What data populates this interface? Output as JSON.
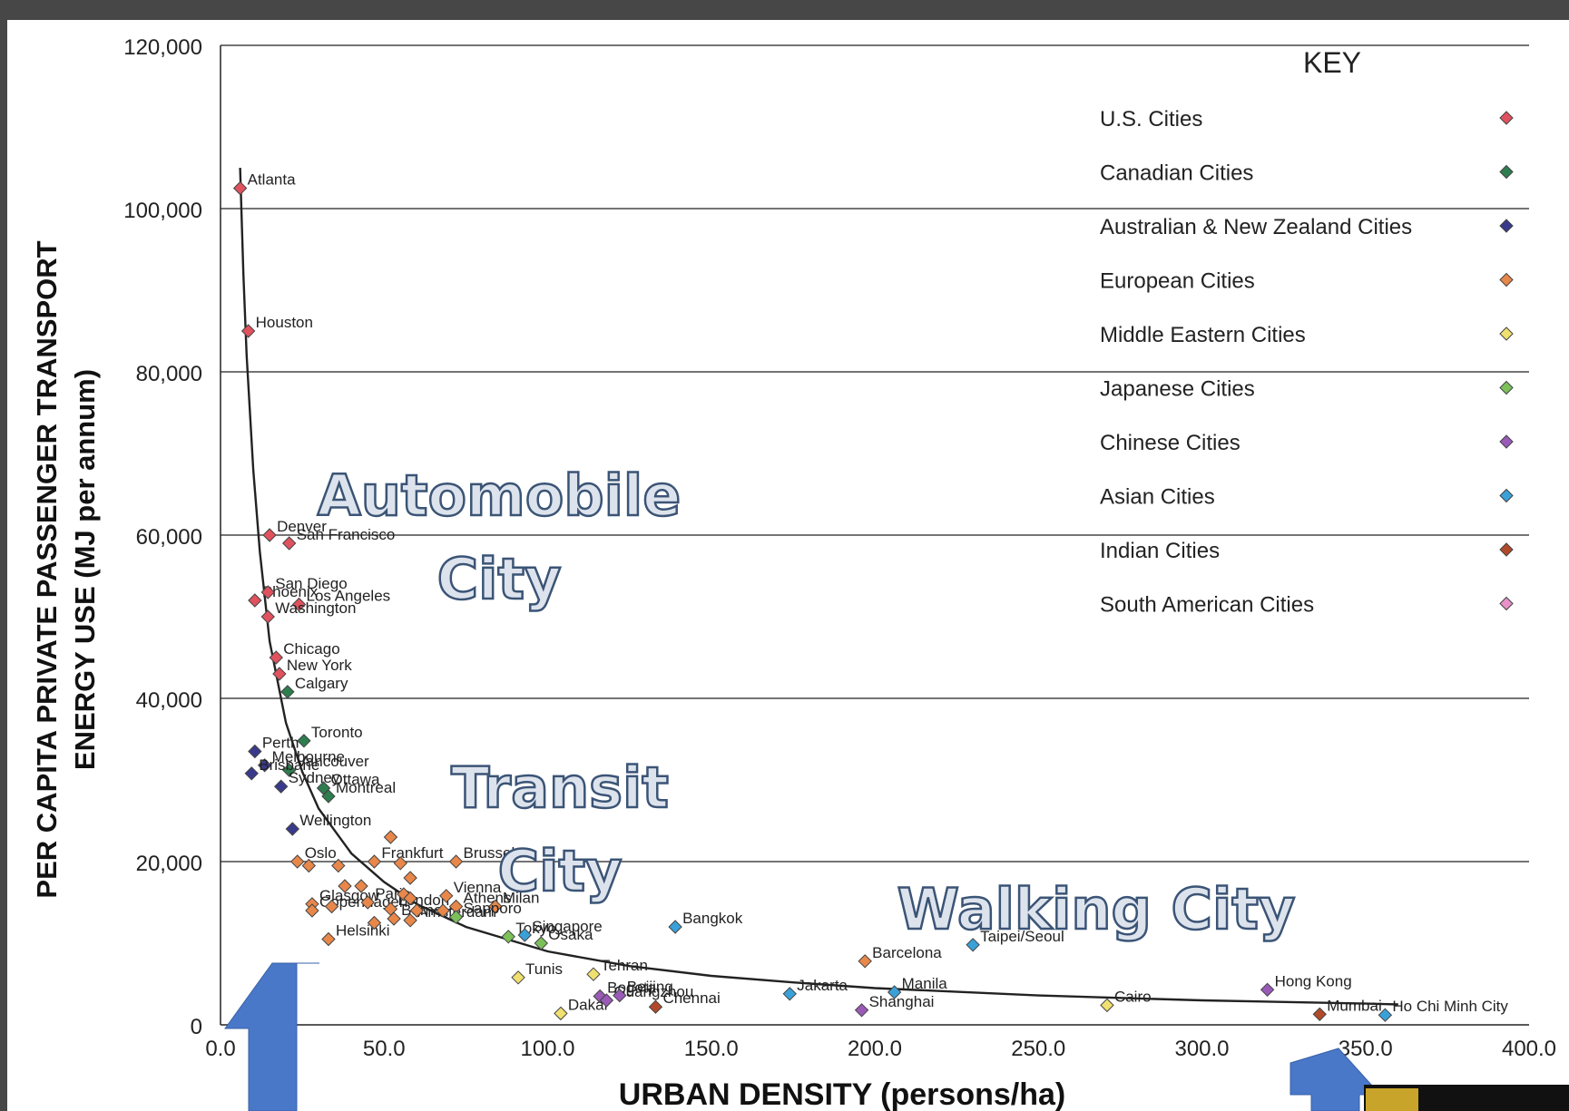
{
  "chart_data": {
    "type": "scatter",
    "xlabel": "URBAN DENSITY (persons/ha)",
    "ylabel_line1": "PER CAPITA PRIVATE PASSENGER TRANSPORT",
    "ylabel_line2": "ENERGY USE (MJ per annum)",
    "xlim": [
      0,
      400
    ],
    "ylim": [
      0,
      120000
    ],
    "x_ticks": [
      "0.0",
      "50.0",
      "100.0",
      "150.0",
      "200.0",
      "250.0",
      "300.0",
      "350.0",
      "400.0"
    ],
    "y_ticks": [
      "0",
      "20,000",
      "40,000",
      "60,000",
      "80,000",
      "100,000",
      "120,000"
    ],
    "grid": "horizontal",
    "legend": {
      "title": "KEY",
      "placement": "top-right",
      "entries": [
        {
          "label": "U.S. Cities",
          "color": "#e0525e"
        },
        {
          "label": "Canadian Cities",
          "color": "#2e7d4f"
        },
        {
          "label": "Australian & New Zealand Cities",
          "color": "#3a3a8c"
        },
        {
          "label": "European Cities",
          "color": "#e8874a"
        },
        {
          "label": "Middle Eastern Cities",
          "color": "#f0e070"
        },
        {
          "label": "Japanese Cities",
          "color": "#7cc05a"
        },
        {
          "label": "Chinese Cities",
          "color": "#9a5ab8"
        },
        {
          "label": "Asian Cities",
          "color": "#3aa0d8"
        },
        {
          "label": "Indian Cities",
          "color": "#b04a2a"
        },
        {
          "label": "South American Cities",
          "color": "#e890c8"
        }
      ]
    },
    "series": [
      {
        "name": "U.S. Cities",
        "color": "#e0525e",
        "points": [
          {
            "label": "Atlanta",
            "x": 6,
            "y": 102500
          },
          {
            "label": "Houston",
            "x": 8.5,
            "y": 85000
          },
          {
            "label": "Denver",
            "x": 15,
            "y": 60000
          },
          {
            "label": "San Francisco",
            "x": 21,
            "y": 59000
          },
          {
            "label": "Phoenix",
            "x": 10.5,
            "y": 52000
          },
          {
            "label": "San Diego",
            "x": 14.5,
            "y": 53000
          },
          {
            "label": "Los Angeles",
            "x": 24,
            "y": 51500
          },
          {
            "label": "Washington",
            "x": 14.5,
            "y": 50000
          },
          {
            "label": "Chicago",
            "x": 17,
            "y": 45000
          },
          {
            "label": "New York",
            "x": 18,
            "y": 43000
          }
        ]
      },
      {
        "name": "Canadian Cities",
        "color": "#2e7d4f",
        "points": [
          {
            "label": "Calgary",
            "x": 20.5,
            "y": 40800
          },
          {
            "label": "Toronto",
            "x": 25.5,
            "y": 34800
          },
          {
            "label": "Vancouver",
            "x": 21,
            "y": 31200
          },
          {
            "label": "Ottawa",
            "x": 31.5,
            "y": 29000
          },
          {
            "label": "Montreal",
            "x": 33,
            "y": 28000
          }
        ]
      },
      {
        "name": "Australian & New Zealand Cities",
        "color": "#3a3a8c",
        "points": [
          {
            "label": "Perth",
            "x": 10.5,
            "y": 33500
          },
          {
            "label": "Melbourne",
            "x": 13.5,
            "y": 31800
          },
          {
            "label": "Brisbane",
            "x": 9.5,
            "y": 30800
          },
          {
            "label": "Sydney",
            "x": 18.5,
            "y": 29200
          },
          {
            "label": "Wellington",
            "x": 22,
            "y": 24000
          }
        ]
      },
      {
        "name": "European Cities",
        "color": "#e8874a",
        "points": [
          {
            "label": "Oslo",
            "x": 23.5,
            "y": 20000
          },
          {
            "label": "Frankfurt",
            "x": 47,
            "y": 20000
          },
          {
            "label": "Brussels",
            "x": 72,
            "y": 20000
          },
          {
            "label": "Glasgow",
            "x": 28,
            "y": 14800
          },
          {
            "label": "Copenhagen",
            "x": 28,
            "y": 14000
          },
          {
            "label": "Paris",
            "x": 45,
            "y": 15000
          },
          {
            "label": "London",
            "x": 52,
            "y": 14200
          },
          {
            "label": "Berne",
            "x": 53,
            "y": 13000
          },
          {
            "label": "Amsterdam",
            "x": 58,
            "y": 12800
          },
          {
            "label": "Vienna",
            "x": 69,
            "y": 15800
          },
          {
            "label": "Athens",
            "x": 72,
            "y": 14500
          },
          {
            "label": "Milan",
            "x": 84,
            "y": 14500
          },
          {
            "label": "Helsinki",
            "x": 33,
            "y": 10500
          },
          {
            "label": "Barcelona",
            "x": 197,
            "y": 7800
          },
          {
            "label": "",
            "x": 52,
            "y": 23000
          },
          {
            "label": "",
            "x": 27,
            "y": 19500
          },
          {
            "label": "",
            "x": 36,
            "y": 19500
          },
          {
            "label": "",
            "x": 55,
            "y": 19800
          },
          {
            "label": "",
            "x": 58,
            "y": 18000
          },
          {
            "label": "",
            "x": 38,
            "y": 17000
          },
          {
            "label": "",
            "x": 43,
            "y": 17000
          },
          {
            "label": "",
            "x": 56,
            "y": 16000
          },
          {
            "label": "",
            "x": 58,
            "y": 15500
          },
          {
            "label": "",
            "x": 34,
            "y": 14500
          },
          {
            "label": "",
            "x": 60,
            "y": 14000
          },
          {
            "label": "",
            "x": 68,
            "y": 14000
          },
          {
            "label": "",
            "x": 47,
            "y": 12500
          }
        ]
      },
      {
        "name": "Middle Eastern Cities",
        "color": "#f0e070",
        "points": [
          {
            "label": "Tunis",
            "x": 91,
            "y": 5800
          },
          {
            "label": "Tehran",
            "x": 114,
            "y": 6200
          },
          {
            "label": "Dakar",
            "x": 104,
            "y": 1400
          },
          {
            "label": "Cairo",
            "x": 271,
            "y": 2400
          }
        ]
      },
      {
        "name": "Japanese Cities",
        "color": "#7cc05a",
        "points": [
          {
            "label": "Sapporo",
            "x": 72,
            "y": 13200
          },
          {
            "label": "Tokyo",
            "x": 88,
            "y": 10800
          },
          {
            "label": "Osaka",
            "x": 98,
            "y": 10000
          }
        ]
      },
      {
        "name": "Chinese Cities",
        "color": "#9a5ab8",
        "points": [
          {
            "label": "Bogota",
            "x": 116,
            "y": 3500
          },
          {
            "label": "Guangzhou",
            "x": 118,
            "y": 3000
          },
          {
            "label": "Beijing",
            "x": 122,
            "y": 3600
          },
          {
            "label": "Shanghai",
            "x": 196,
            "y": 1800
          },
          {
            "label": "Hong Kong",
            "x": 320,
            "y": 4300
          }
        ]
      },
      {
        "name": "Asian Cities",
        "color": "#3aa0d8",
        "points": [
          {
            "label": "Singapore",
            "x": 93,
            "y": 11000
          },
          {
            "label": "Bangkok",
            "x": 139,
            "y": 12000
          },
          {
            "label": "Jakarta",
            "x": 174,
            "y": 3800
          },
          {
            "label": "Manila",
            "x": 206,
            "y": 4000
          },
          {
            "label": "Taipei/Seoul",
            "x": 230,
            "y": 9800
          },
          {
            "label": "Ho Chi Minh City",
            "x": 356,
            "y": 1200
          }
        ]
      },
      {
        "name": "Indian Cities",
        "color": "#b04a2a",
        "points": [
          {
            "label": "Chennai",
            "x": 133,
            "y": 2200
          },
          {
            "label": "Mumbai",
            "x": 336,
            "y": 1300
          }
        ]
      }
    ],
    "curve": [
      [
        6,
        105000
      ],
      [
        7,
        92000
      ],
      [
        8,
        82000
      ],
      [
        10,
        68000
      ],
      [
        12,
        58000
      ],
      [
        15,
        47000
      ],
      [
        20,
        37000
      ],
      [
        25,
        31000
      ],
      [
        30,
        26500
      ],
      [
        40,
        21000
      ],
      [
        50,
        17500
      ],
      [
        60,
        14800
      ],
      [
        75,
        12000
      ],
      [
        100,
        9000
      ],
      [
        125,
        7200
      ],
      [
        150,
        6000
      ],
      [
        175,
        5200
      ],
      [
        200,
        4500
      ],
      [
        250,
        3600
      ],
      [
        300,
        3000
      ],
      [
        350,
        2600
      ],
      [
        360,
        2500
      ]
    ],
    "annotations": [
      {
        "line1": "Automobile",
        "line2": "City"
      },
      {
        "line1": "Transit",
        "line2": "City"
      },
      {
        "line1": "Walking City",
        "line2": ""
      }
    ]
  }
}
